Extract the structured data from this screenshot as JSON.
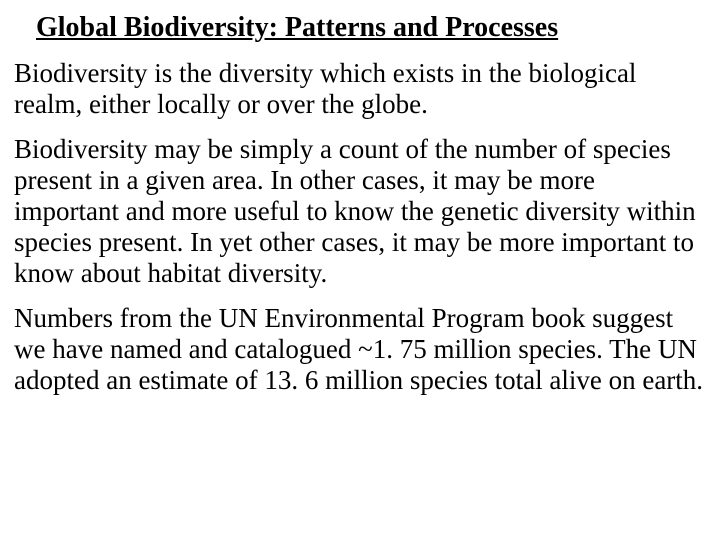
{
  "title": "Global Biodiversity: Patterns and Processes",
  "paragraphs": {
    "p1": "Biodiversity is the diversity which exists in the biological realm, either locally or over the globe.",
    "p2": "Biodiversity may be simply a count of the number of species present in a given area. In other cases, it may be more important and more useful to know the genetic diversity within species present. In yet other cases, it may be more important to know about habitat diversity.",
    "p3": "Numbers from the UN Environmental Program book suggest we have named and catalogued ~1. 75 million species. The UN adopted an estimate of 13. 6 million species total alive on earth."
  }
}
